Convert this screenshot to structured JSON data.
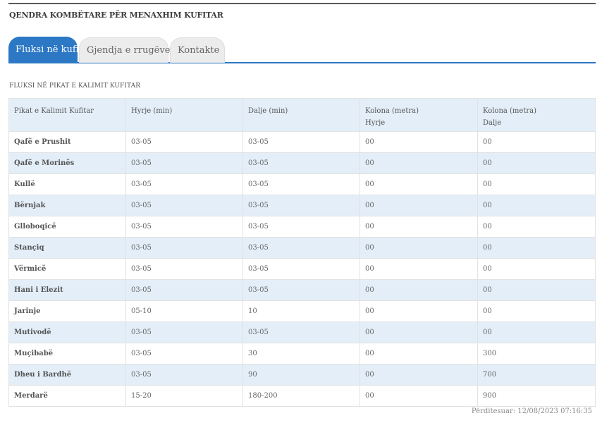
{
  "header": {
    "title": "QENDRA KOMBËTARE PËR MENAXHIM KUFITAR"
  },
  "tabs": [
    {
      "label": "Fluksi në kufi",
      "active": true
    },
    {
      "label": "Gjendja e rrugëve",
      "active": false
    },
    {
      "label": "Kontakte",
      "active": false
    }
  ],
  "section": {
    "title": "FLUKSI NË PIKAT E KALIMIT KUFITAR"
  },
  "table": {
    "columns": [
      {
        "line1": "Pikat e Kalimit Kufitar",
        "line2": ""
      },
      {
        "line1": "Hyrje (min)",
        "line2": ""
      },
      {
        "line1": "Dalje (min)",
        "line2": ""
      },
      {
        "line1": "Kolona (metra)",
        "line2": "Hyrje"
      },
      {
        "line1": "Kolona (metra)",
        "line2": "Dalje"
      }
    ],
    "rows": [
      [
        "Qafë e Prushit",
        "03-05",
        "03-05",
        "00",
        "00"
      ],
      [
        "Qafë e Morinës",
        "03-05",
        "03-05",
        "00",
        "00"
      ],
      [
        "Kullë",
        "03-05",
        "03-05",
        "00",
        "00"
      ],
      [
        "Bërnjak",
        "03-05",
        "03-05",
        "00",
        "00"
      ],
      [
        "Glloboqicë",
        "03-05",
        "03-05",
        "00",
        "00"
      ],
      [
        "Stançiq",
        "03-05",
        "03-05",
        "00",
        "00"
      ],
      [
        "Vërmicë",
        "03-05",
        "03-05",
        "00",
        "00"
      ],
      [
        "Hani i Elezit",
        "03-05",
        "03-05",
        "00",
        "00"
      ],
      [
        "Jarinje",
        "05-10",
        "10",
        "00",
        "00"
      ],
      [
        "Mutivodë",
        "03-05",
        "03-05",
        "00",
        "00"
      ],
      [
        "Muçibabë",
        "03-05",
        "30",
        "00",
        "300"
      ],
      [
        "Dheu i Bardhë",
        "03-05",
        "90",
        "00",
        "700"
      ],
      [
        "Merdarë",
        "15-20",
        "180-200",
        "00",
        "900"
      ]
    ]
  },
  "footer": {
    "updated": "Përditesuar: 12/08/2023 07:16:35"
  },
  "colors": {
    "accent": "#2c78c4",
    "row_stripe": "#e3eef8"
  }
}
